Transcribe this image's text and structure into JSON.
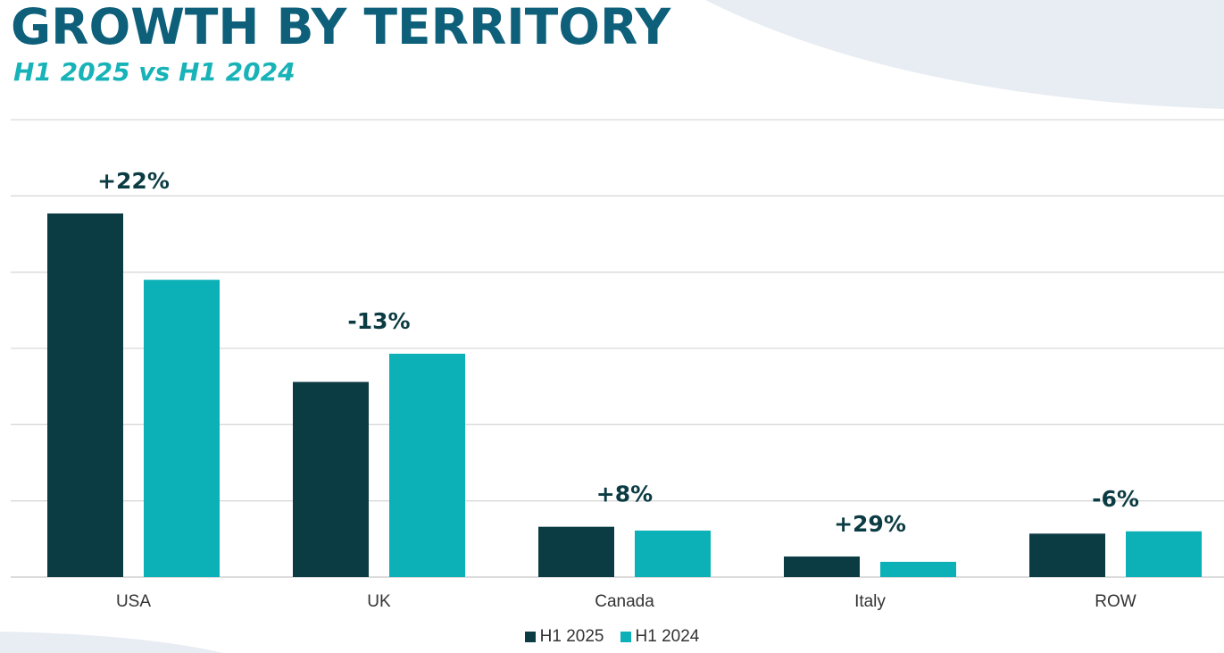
{
  "header": {
    "title": "GROWTH BY TERRITORY",
    "subtitle": "H1 2025 vs H1 2024"
  },
  "colors": {
    "title": "#0d5f7a",
    "subtitle": "#17b3b8",
    "series_2025": "#0c3c43",
    "series_2024": "#0cb1b8",
    "gridline": "#d9d9d9",
    "growth_label": "#0c3c43",
    "background_shape": "#e8edf3"
  },
  "chart_data": {
    "type": "bar",
    "title": "GROWTH BY TERRITORY",
    "subtitle": "H1 2025 vs H1 2024",
    "categories": [
      "USA",
      "UK",
      "Canada",
      "Italy",
      "ROW"
    ],
    "series": [
      {
        "name": "H1 2025",
        "values": [
          4.77,
          2.56,
          0.66,
          0.27,
          0.57
        ]
      },
      {
        "name": "H1 2024",
        "values": [
          3.9,
          2.93,
          0.61,
          0.2,
          0.6
        ]
      }
    ],
    "growth_labels": [
      "+22%",
      "-13%",
      "+8%",
      "+29%",
      "-6%"
    ],
    "ylim": [
      0,
      6
    ],
    "gridlines": 6,
    "xlabel": "",
    "ylabel": "",
    "legend_position": "bottom"
  },
  "legend": {
    "items": [
      {
        "label": "H1 2025",
        "color": "#0c3c43"
      },
      {
        "label": "H1 2024",
        "color": "#0cb1b8"
      }
    ]
  }
}
